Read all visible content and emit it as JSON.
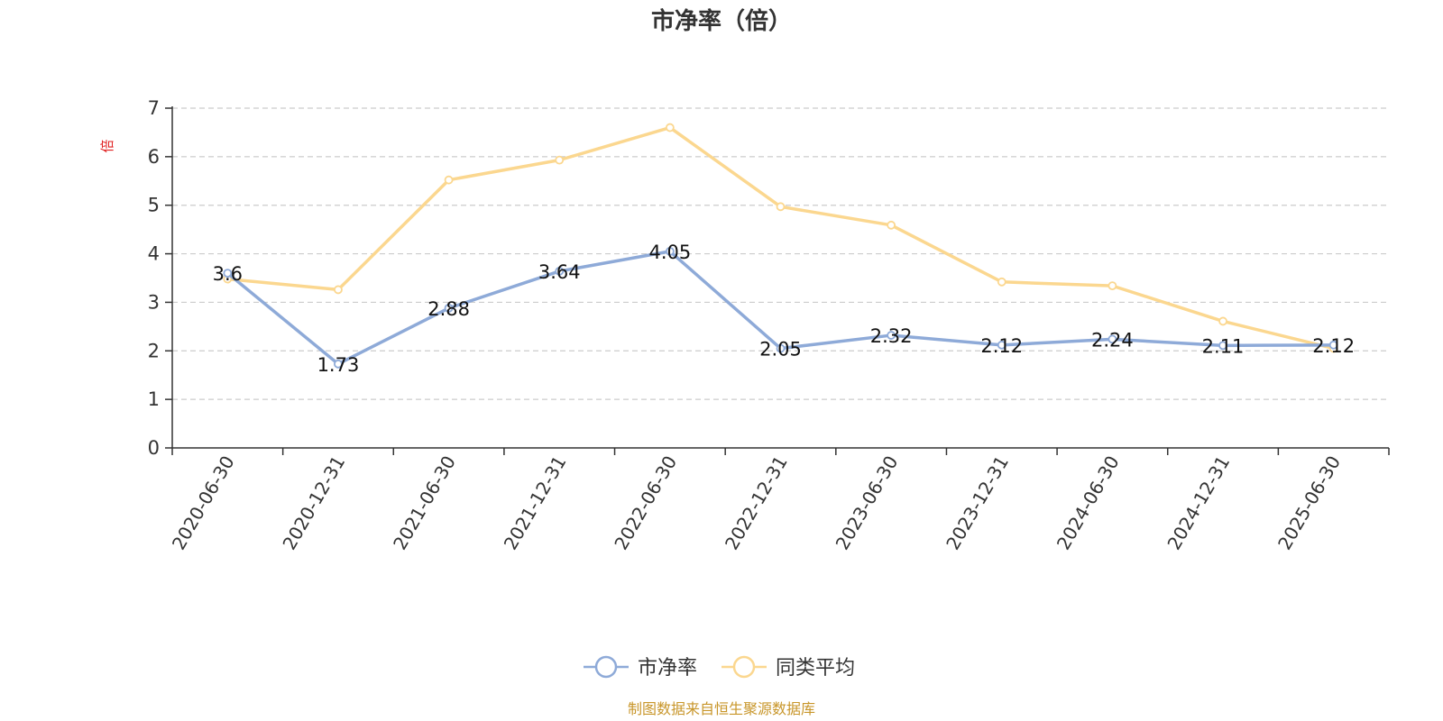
{
  "chart_data": {
    "type": "line",
    "title": "市净率（倍）",
    "ylabel": "倍",
    "xlabel": "",
    "ylim": [
      0,
      7
    ],
    "yticks": [
      "0",
      "1",
      "2",
      "3",
      "4",
      "5",
      "6",
      "7"
    ],
    "categories": [
      "2020-06-30",
      "2020-12-31",
      "2021-06-30",
      "2021-12-31",
      "2022-06-30",
      "2022-12-31",
      "2023-06-30",
      "2023-12-31",
      "2024-06-30",
      "2024-12-31",
      "2025-06-30"
    ],
    "grid": true,
    "legend_position": "bottom",
    "series": [
      {
        "name": "市净率",
        "color": "#8eaad8",
        "values": [
          3.6,
          1.73,
          2.88,
          3.64,
          4.05,
          2.05,
          2.32,
          2.12,
          2.24,
          2.11,
          2.12
        ],
        "labels": [
          "3.6",
          "1.73",
          "2.88",
          "3.64",
          "4.05",
          "2.05",
          "2.32",
          "2.12",
          "2.24",
          "2.11",
          "2.12"
        ]
      },
      {
        "name": "同类平均",
        "color": "#fbd78f",
        "values": [
          3.48,
          3.26,
          5.52,
          5.93,
          6.6,
          4.97,
          4.59,
          3.42,
          3.34,
          2.61,
          2.05
        ]
      }
    ]
  },
  "footer": {
    "source": "制图数据来自恒生聚源数据库"
  }
}
